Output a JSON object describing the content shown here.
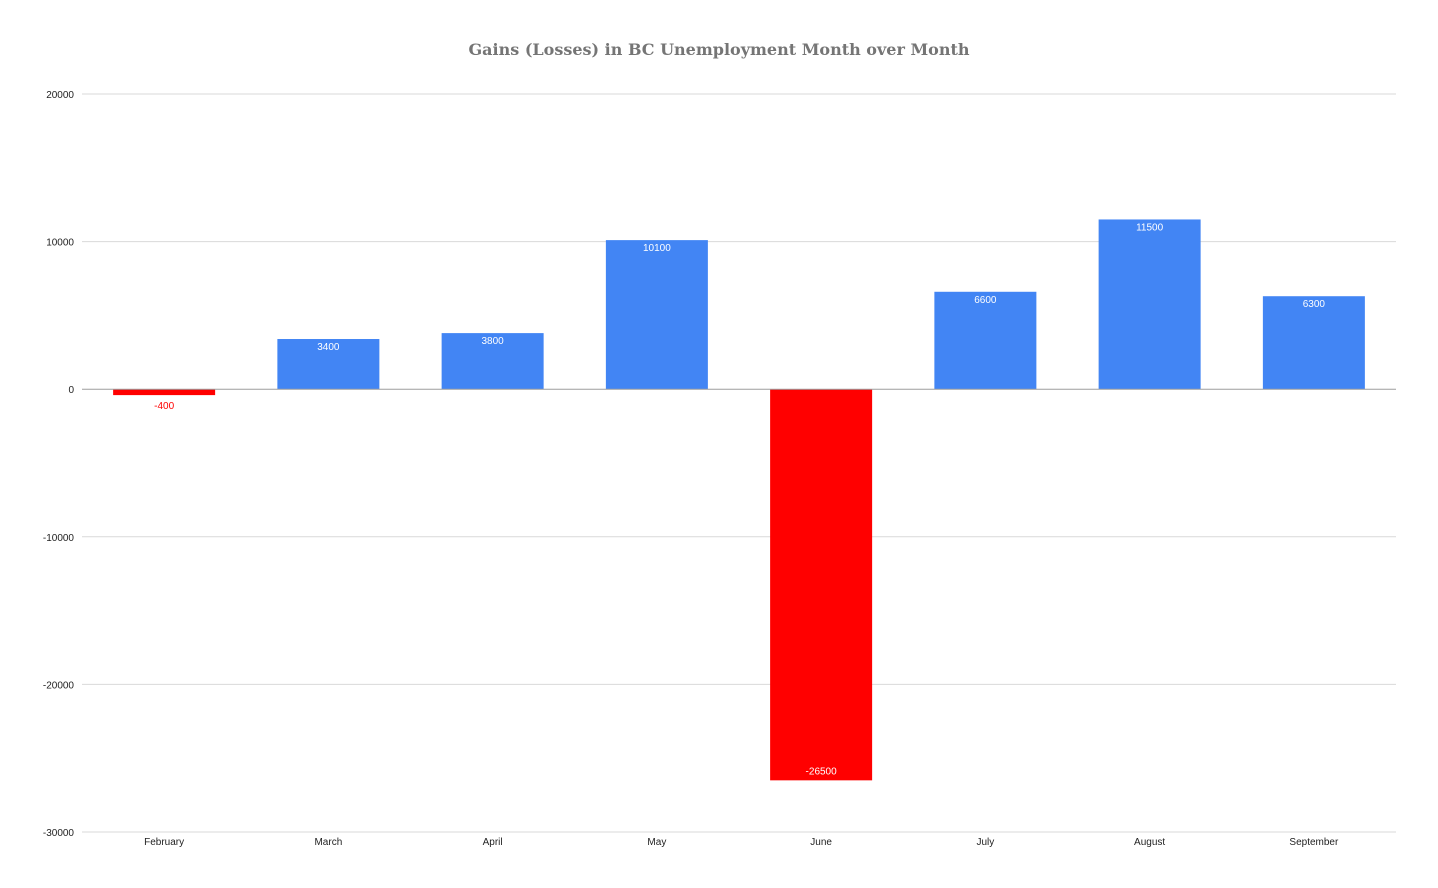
{
  "chart_data": {
    "type": "bar",
    "title": "Gains (Losses) in BC Unemployment Month over Month",
    "xlabel": "",
    "ylabel": "",
    "categories": [
      "February",
      "March",
      "April",
      "May",
      "June",
      "July",
      "August",
      "September"
    ],
    "values": [
      -400,
      3400,
      3800,
      10100,
      -26500,
      6600,
      11500,
      6300
    ],
    "data_labels": [
      "-400",
      "3400",
      "3800",
      "10100",
      "-26500",
      "6600",
      "11500",
      "6300"
    ],
    "ylim": [
      -30000,
      20000
    ],
    "yticks": [
      20000,
      10000,
      0,
      -10000,
      -20000,
      -30000
    ],
    "ytick_labels": [
      "20000",
      "10000",
      "0",
      "-10000",
      "-20000",
      "-30000"
    ],
    "grid": true,
    "legend": "none",
    "colors": {
      "positive": "#4285f4",
      "negative": "#ff0000",
      "gridline": "#d9d9d9",
      "zero_line": "#9e9e9e",
      "axis_text": "#222222",
      "title": "#757575"
    }
  }
}
